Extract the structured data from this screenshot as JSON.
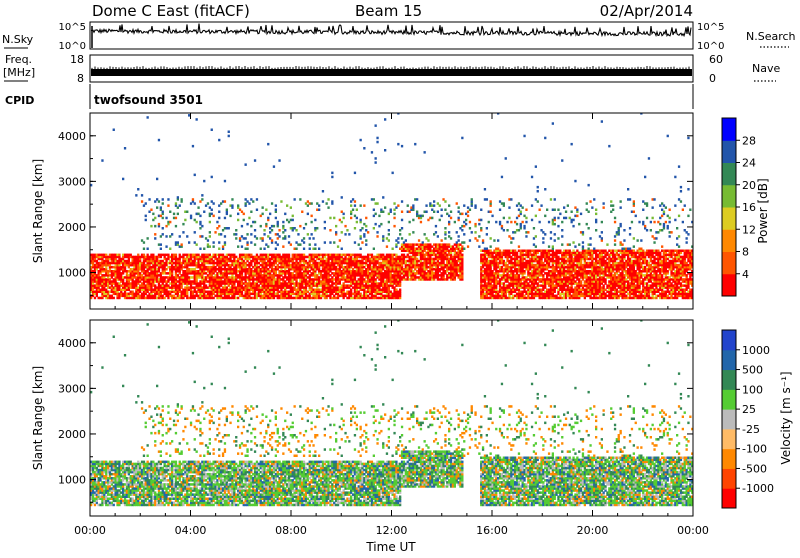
{
  "header": {
    "station": "Dome C East (fitACF)",
    "beam": "Beam 15",
    "date": "02/Apr/2014"
  },
  "strips": {
    "nsky_label": "N.Sky",
    "nsky_ticks": [
      "10^5",
      "10^0"
    ],
    "nsearch_label": "N.Search",
    "nsearch_ticks": [
      "10^5",
      "10^0"
    ],
    "freq_label": "Freq.",
    "freq_unit": "[MHz]",
    "freq_ticks": [
      "18",
      "8"
    ],
    "nave_label": "Nave",
    "nave_ticks": [
      "60",
      "0"
    ],
    "cpid_label": "CPID",
    "cpid_value": "twofsound 3501"
  },
  "chart_data": [
    {
      "type": "heatmap",
      "name": "power",
      "ylabel": "Slant Range [km]",
      "xlabel": "Time UT",
      "xlim": [
        0,
        24
      ],
      "ylim": [
        200,
        4500
      ],
      "yticks": [
        "1000",
        "2000",
        "3000",
        "4000"
      ],
      "xticks": [
        "00:00",
        "04:00",
        "08:00",
        "12:00",
        "16:00",
        "20:00",
        "00:00"
      ],
      "colorbar": {
        "label": "Power [dB]",
        "ticks": [
          "4",
          "8",
          "12",
          "16",
          "20",
          "24",
          "28"
        ],
        "colors": [
          "#0000ff",
          "#2255aa",
          "#338855",
          "#77bb33",
          "#ddcc22",
          "#ff8800",
          "#ff5500",
          "#ff0000"
        ]
      },
      "regions": [
        {
          "t0": 0,
          "t1": 12.3,
          "r0": 400,
          "r1": 1400,
          "level": "high"
        },
        {
          "t0": 12.3,
          "t1": 14.8,
          "r0": 800,
          "r1": 1600,
          "level": "high"
        },
        {
          "t0": 15.5,
          "t1": 24,
          "r0": 400,
          "r1": 1500,
          "level": "high"
        },
        {
          "t0": 2,
          "t1": 24,
          "r0": 1500,
          "r1": 2600,
          "level": "low"
        }
      ]
    },
    {
      "type": "heatmap",
      "name": "velocity",
      "ylabel": "Slant Range [km]",
      "xlabel": "Time UT",
      "xlim": [
        0,
        24
      ],
      "ylim": [
        200,
        4500
      ],
      "yticks": [
        "1000",
        "2000",
        "3000",
        "4000"
      ],
      "xticks": [
        "00:00",
        "04:00",
        "08:00",
        "12:00",
        "16:00",
        "20:00",
        "00:00"
      ],
      "colorbar": {
        "label": "Velocity [m s⁻¹]",
        "ticks": [
          "1000",
          "500",
          "100",
          "25",
          "-25",
          "-100",
          "-500",
          "-1000"
        ],
        "colors": [
          "#2244cc",
          "#2266aa",
          "#338855",
          "#55cc33",
          "#bbbbbb",
          "#ffbb66",
          "#ff8800",
          "#ff4400",
          "#ff0000"
        ]
      }
    }
  ]
}
